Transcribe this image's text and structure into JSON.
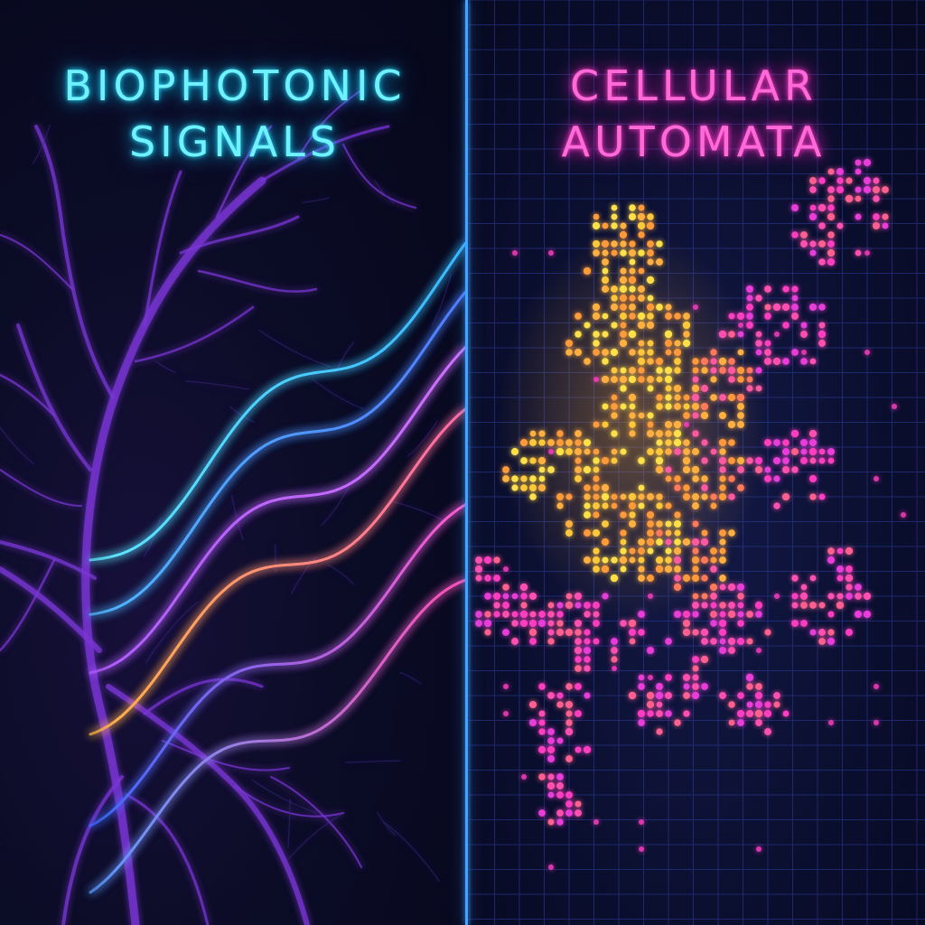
{
  "left_panel": {
    "title_line1": "BIOPHOTONIC",
    "title_line2": "SIGNALS",
    "title_color": "#6ff2ff"
  },
  "right_panel": {
    "title_line1": "CELLULAR",
    "title_line2": "AUTOMATA",
    "title_color": "#ff6ad8"
  },
  "colors": {
    "background": "#07081c",
    "divider": "#3fa6ff",
    "neuron": "#8a3fe0",
    "grid": "#2e3ea0",
    "cell_core": "#ffd23a",
    "cell_mid": "#ff8a3a",
    "cell_outer": "#ff3cc0"
  },
  "icons": [
    "neuron-branches",
    "light-wave-lines",
    "automata-grid"
  ]
}
